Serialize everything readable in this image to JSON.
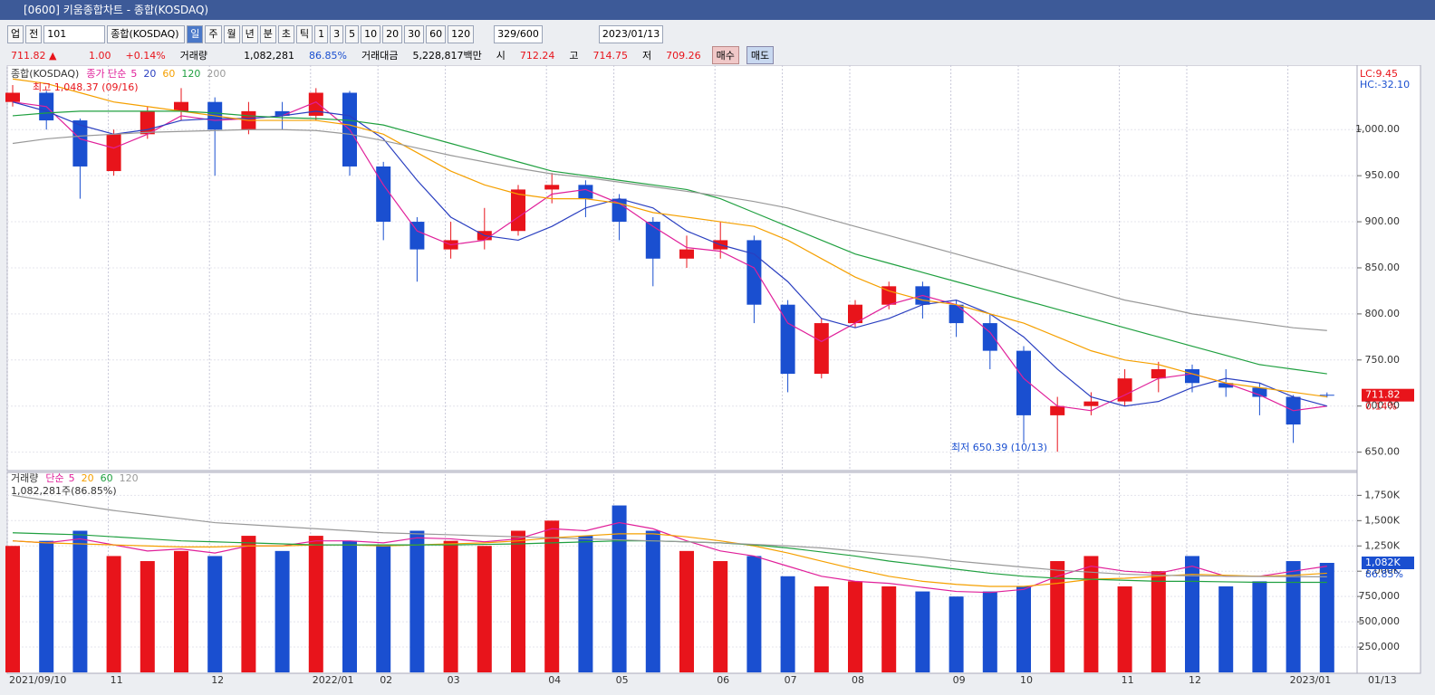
{
  "window": {
    "title": "[0600] 키움종합차트 - 종합(KOSDAQ)"
  },
  "toolbar": {
    "market": "업",
    "scope": "전",
    "code": "101",
    "name": "종합(KOSDAQ)",
    "periods": [
      "일",
      "주",
      "월",
      "년",
      "분",
      "초",
      "틱"
    ],
    "intervals": [
      "1",
      "3",
      "5",
      "10",
      "20",
      "30",
      "60",
      "120"
    ],
    "count": "329/600",
    "date": "2023/01/13"
  },
  "quote": {
    "price": "711.82 ▲",
    "change": "1.00",
    "change_pct": "+0.14%",
    "volume_label": "거래량",
    "volume": "1,082,281",
    "volume_pct": "86.85%",
    "amount_label": "거래대금",
    "amount": "5,228,817백만",
    "open_label": "시",
    "open": "712.24",
    "high_label": "고",
    "high": "714.75",
    "low_label": "저",
    "low": "709.26",
    "buy": "매수",
    "sell": "매도"
  },
  "chart_data": [
    {
      "type": "candlestick",
      "title": "종합(KOSDAQ)",
      "legend_title": "종가 단순",
      "up_color": "#e8141b",
      "down_color": "#1a4fd0",
      "max_label": "최고 1,048.37 (09/16)",
      "min_label": "최저 650.39 (10/13)",
      "lc_label": "LC:9.45",
      "hc_label": "HC:-32.10",
      "last_label": "711.82",
      "last_change": "0.14%",
      "ylim": [
        630,
        1067
      ],
      "yticks": [
        {
          "value": 650,
          "label": "650.00"
        },
        {
          "value": 700,
          "label": "700.00"
        },
        {
          "value": 750,
          "label": "750.00"
        },
        {
          "value": 800,
          "label": "800.00"
        },
        {
          "value": 850,
          "label": "850.00"
        },
        {
          "value": 900,
          "label": "900.00"
        },
        {
          "value": 950,
          "label": "950.00"
        },
        {
          "value": 1000,
          "label": "1,000.00"
        }
      ],
      "grid": true,
      "open": [
        1030,
        1040,
        1010,
        955,
        995,
        1020,
        1030,
        1000,
        1020,
        1015,
        1040,
        960,
        900,
        870,
        880,
        890,
        935,
        940,
        925,
        900,
        860,
        870,
        880,
        810,
        735,
        790,
        810,
        830,
        810,
        790,
        760,
        690,
        700,
        705,
        730,
        740,
        725,
        720,
        710,
        712.24
      ],
      "high": [
        1048.37,
        1042,
        1012,
        1000,
        1025,
        1045,
        1035,
        1030,
        1030,
        1045,
        1042,
        965,
        905,
        900,
        915,
        940,
        953,
        945,
        930,
        905,
        885,
        900,
        885,
        815,
        795,
        815,
        835,
        835,
        815,
        800,
        765,
        710,
        715,
        740,
        748,
        745,
        740,
        725,
        712,
        714.75
      ],
      "low": [
        1025,
        1000,
        925,
        950,
        990,
        1010,
        950,
        995,
        1000,
        1010,
        950,
        880,
        835,
        860,
        870,
        885,
        920,
        905,
        880,
        830,
        850,
        860,
        790,
        715,
        730,
        785,
        805,
        795,
        775,
        740,
        660,
        650.39,
        690,
        700,
        715,
        715,
        710,
        690,
        660,
        709.26
      ],
      "close": [
        1040,
        1010,
        960,
        995,
        1020,
        1030,
        1000,
        1020,
        1015,
        1040,
        960,
        900,
        870,
        880,
        890,
        935,
        940,
        925,
        900,
        860,
        870,
        880,
        810,
        735,
        790,
        810,
        830,
        810,
        790,
        760,
        690,
        700,
        705,
        730,
        740,
        725,
        720,
        710,
        680,
        711.82
      ],
      "series": [
        {
          "name": "5",
          "color": "#e0209a",
          "values": [
            1030,
            1025,
            990,
            980,
            995,
            1015,
            1010,
            1012,
            1015,
            1030,
            1000,
            940,
            890,
            875,
            880,
            905,
            930,
            935,
            920,
            895,
            872,
            868,
            850,
            790,
            770,
            790,
            810,
            820,
            810,
            780,
            730,
            700,
            695,
            712,
            730,
            735,
            725,
            712,
            695,
            700
          ]
        },
        {
          "name": "20",
          "color": "#2a3fc0",
          "values": [
            1030,
            1020,
            1005,
            995,
            1000,
            1010,
            1012,
            1012,
            1015,
            1020,
            1015,
            990,
            945,
            905,
            885,
            880,
            895,
            915,
            925,
            915,
            890,
            875,
            865,
            835,
            795,
            785,
            795,
            810,
            815,
            800,
            775,
            740,
            710,
            700,
            705,
            720,
            730,
            725,
            710,
            700
          ]
        },
        {
          "name": "60",
          "color": "#f5a000",
          "values": [
            1055,
            1050,
            1040,
            1030,
            1025,
            1020,
            1015,
            1010,
            1010,
            1010,
            1005,
            995,
            975,
            955,
            940,
            930,
            925,
            925,
            920,
            910,
            905,
            900,
            895,
            880,
            860,
            840,
            825,
            815,
            810,
            800,
            790,
            775,
            760,
            750,
            745,
            735,
            725,
            720,
            715,
            710
          ]
        },
        {
          "name": "120",
          "color": "#20a040",
          "values": [
            1015,
            1018,
            1020,
            1020,
            1020,
            1020,
            1018,
            1015,
            1013,
            1012,
            1010,
            1005,
            995,
            985,
            975,
            965,
            955,
            950,
            945,
            940,
            935,
            925,
            910,
            895,
            880,
            865,
            855,
            845,
            835,
            825,
            815,
            805,
            795,
            785,
            775,
            765,
            755,
            745,
            740,
            735
          ]
        },
        {
          "name": "200",
          "color": "#999999",
          "values": [
            985,
            990,
            993,
            995,
            997,
            998,
            999,
            1000,
            1000,
            999,
            995,
            988,
            980,
            972,
            965,
            958,
            952,
            948,
            943,
            938,
            933,
            928,
            922,
            915,
            905,
            895,
            885,
            875,
            865,
            855,
            845,
            835,
            825,
            815,
            808,
            800,
            795,
            790,
            785,
            782
          ]
        }
      ]
    },
    {
      "type": "bar",
      "title": "거래량",
      "legend_title": "단순",
      "summary": "1,082,281주(86.85%)",
      "last_label": "1,082K",
      "last_pct": "86.85%",
      "x_end_label": "01/13",
      "categories": [
        "2021/09/10",
        null,
        null,
        "11",
        null,
        null,
        "12",
        null,
        null,
        "2022/01",
        null,
        "02",
        null,
        "03",
        null,
        null,
        "04",
        null,
        "05",
        null,
        null,
        "06",
        null,
        "07",
        null,
        "08",
        null,
        null,
        "09",
        null,
        "10",
        null,
        null,
        "11",
        null,
        "12",
        null,
        null,
        "2023/01",
        null
      ],
      "ylim": [
        0,
        1950000
      ],
      "yticks": [
        {
          "value": 250000,
          "label": "250,000"
        },
        {
          "value": 500000,
          "label": "500,000"
        },
        {
          "value": 750000,
          "label": "750,000"
        },
        {
          "value": 1000000,
          "label": "1,000K"
        },
        {
          "value": 1250000,
          "label": "1,250K"
        },
        {
          "value": 1500000,
          "label": "1,500K"
        },
        {
          "value": 1750000,
          "label": "1,750K"
        }
      ],
      "values": [
        1250000,
        1300000,
        1400000,
        1150000,
        1100000,
        1200000,
        1150000,
        1350000,
        1200000,
        1350000,
        1300000,
        1250000,
        1400000,
        1300000,
        1250000,
        1400000,
        1500000,
        1350000,
        1650000,
        1400000,
        1200000,
        1100000,
        1150000,
        950000,
        850000,
        900000,
        850000,
        800000,
        750000,
        800000,
        850000,
        1100000,
        1150000,
        850000,
        1000000,
        1150000,
        850000,
        900000,
        1100000,
        1082281
      ],
      "series": [
        {
          "name": "5",
          "color": "#e0209a",
          "values": [
            1300000,
            1280000,
            1320000,
            1260000,
            1200000,
            1220000,
            1180000,
            1250000,
            1250000,
            1300000,
            1300000,
            1280000,
            1330000,
            1320000,
            1290000,
            1320000,
            1420000,
            1400000,
            1480000,
            1420000,
            1300000,
            1200000,
            1150000,
            1050000,
            950000,
            900000,
            880000,
            840000,
            800000,
            790000,
            820000,
            950000,
            1050000,
            1000000,
            980000,
            1050000,
            950000,
            950000,
            1000000,
            1050000
          ]
        },
        {
          "name": "20",
          "color": "#f5a000",
          "values": [
            1300000,
            1280000,
            1270000,
            1260000,
            1250000,
            1240000,
            1240000,
            1250000,
            1250000,
            1260000,
            1260000,
            1250000,
            1260000,
            1270000,
            1280000,
            1300000,
            1330000,
            1350000,
            1370000,
            1370000,
            1340000,
            1300000,
            1250000,
            1180000,
            1100000,
            1020000,
            950000,
            900000,
            870000,
            850000,
            850000,
            880000,
            920000,
            930000,
            950000,
            970000,
            960000,
            950000,
            960000,
            980000
          ]
        },
        {
          "name": "60",
          "color": "#20a040",
          "values": [
            1380000,
            1370000,
            1360000,
            1340000,
            1320000,
            1300000,
            1290000,
            1280000,
            1270000,
            1260000,
            1260000,
            1260000,
            1260000,
            1260000,
            1265000,
            1270000,
            1280000,
            1290000,
            1300000,
            1300000,
            1290000,
            1280000,
            1260000,
            1230000,
            1190000,
            1150000,
            1100000,
            1060000,
            1020000,
            980000,
            950000,
            930000,
            920000,
            910000,
            900000,
            900000,
            895000,
            890000,
            890000,
            890000
          ]
        },
        {
          "name": "120",
          "color": "#999999",
          "values": [
            1750000,
            1700000,
            1650000,
            1600000,
            1560000,
            1520000,
            1480000,
            1460000,
            1440000,
            1420000,
            1400000,
            1380000,
            1370000,
            1360000,
            1350000,
            1340000,
            1330000,
            1320000,
            1310000,
            1300000,
            1290000,
            1280000,
            1265000,
            1250000,
            1230000,
            1200000,
            1170000,
            1140000,
            1100000,
            1070000,
            1040000,
            1010000,
            990000,
            970000,
            960000,
            955000,
            950000,
            948000,
            946000,
            945000
          ]
        }
      ]
    }
  ]
}
